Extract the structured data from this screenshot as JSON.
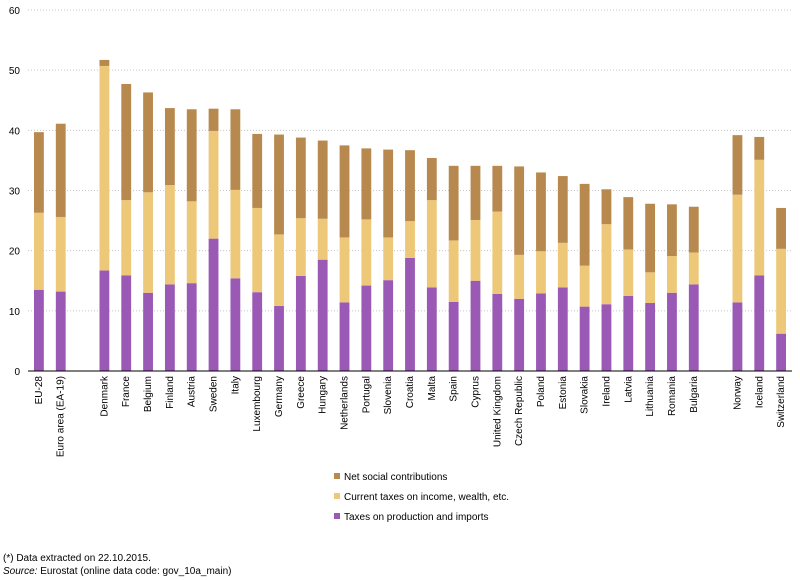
{
  "chart_data": {
    "type": "bar",
    "stacked": true,
    "ylim": [
      0,
      60
    ],
    "yticks": [
      0,
      10,
      20,
      30,
      40,
      50,
      60
    ],
    "grid": true,
    "legend_position": "bottom-center",
    "categories": [
      "EU-28",
      "Euro area (EA-19)",
      "Denmark",
      "France",
      "Belgium",
      "Finland",
      "Austria",
      "Sweden",
      "Italy",
      "Luxembourg",
      "Germany",
      "Greece",
      "Hungary",
      "Netherlands",
      "Portugal",
      "Slovenia",
      "Croatia",
      "Malta",
      "Spain",
      "Cyprus",
      "United Kingdom",
      "Czech Republic",
      "Poland",
      "Estonia",
      "Slovakia",
      "Ireland",
      "Latvia",
      "Lithuania",
      "Romania",
      "Bulgaria",
      "Norway",
      "Iceland",
      "Switzerland"
    ],
    "groups": [
      [
        0,
        1
      ],
      [
        2,
        29
      ],
      [
        30,
        32
      ]
    ],
    "series": [
      {
        "name": "Taxes on production and imports",
        "color": "#9b59b6",
        "values": [
          13.5,
          13.2,
          16.7,
          15.9,
          13.0,
          14.4,
          14.6,
          22.0,
          15.4,
          13.1,
          10.8,
          15.8,
          18.5,
          11.4,
          14.2,
          15.1,
          18.8,
          13.9,
          11.5,
          15.0,
          12.8,
          12.0,
          12.9,
          13.9,
          10.7,
          11.1,
          12.5,
          11.3,
          13.0,
          14.4,
          11.4,
          15.9,
          6.2
        ]
      },
      {
        "name": "Current taxes on income, wealth, etc.",
        "color": "#ecc878",
        "values": [
          12.8,
          12.4,
          34.0,
          12.5,
          16.7,
          16.5,
          13.6,
          17.9,
          14.7,
          14.0,
          11.9,
          9.6,
          6.8,
          10.8,
          11.0,
          7.1,
          6.1,
          14.5,
          10.2,
          10.1,
          13.7,
          7.3,
          7.0,
          7.4,
          6.8,
          13.3,
          7.7,
          5.1,
          6.1,
          5.3,
          17.9,
          19.2,
          14.1
        ]
      },
      {
        "name": "Net social contributions",
        "color": "#b8894f",
        "values": [
          13.4,
          15.5,
          1.0,
          19.3,
          16.6,
          12.8,
          15.3,
          3.7,
          13.4,
          12.3,
          16.6,
          13.4,
          13.0,
          15.3,
          11.8,
          14.6,
          11.8,
          7.0,
          12.4,
          9.0,
          7.6,
          14.7,
          13.1,
          11.1,
          13.6,
          5.8,
          8.7,
          11.4,
          8.6,
          7.6,
          9.9,
          3.8,
          6.8
        ]
      }
    ]
  },
  "footnotes": {
    "note": "(*) Data extracted on 22.10.2015.",
    "source_label": "Source:",
    "source_text": "Eurostat (online data code: gov_10a_main)"
  }
}
